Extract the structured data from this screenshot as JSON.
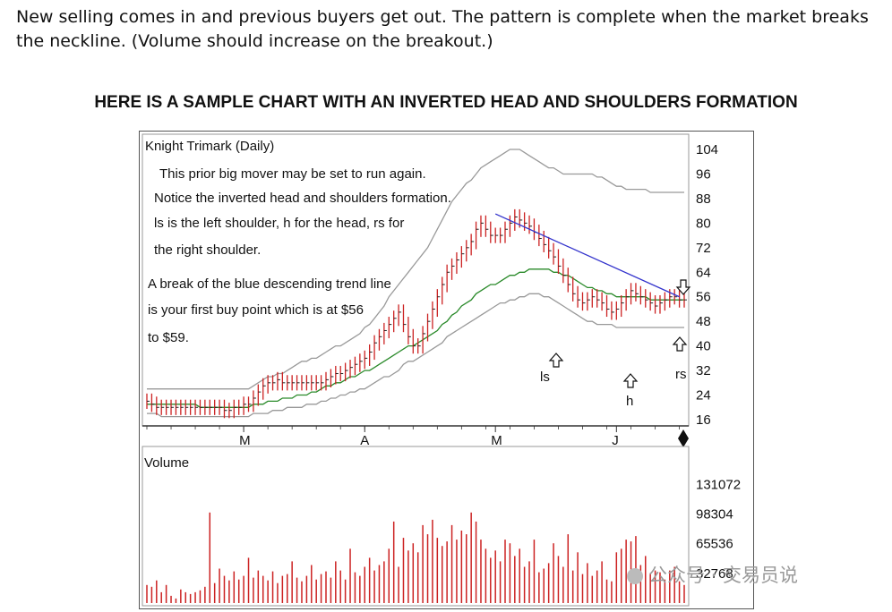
{
  "intro_text": "New selling comes in and previous buyers get out. The pattern is complete when the market breaks the neckline. (Volume should increase on the breakout.)",
  "heading": "HERE IS A SAMPLE CHART WITH AN INVERTED HEAD AND SHOULDERS FORMATION",
  "watermark": "公众号 · 交易员说",
  "chart_data": [
    {
      "type": "bar",
      "title": "Knight Trimark (Daily)",
      "annotations": [
        "This prior big mover may be set to run again.",
        "Notice the inverted head and shoulders formation.",
        "ls is the left shoulder, h for the head, rs for",
        "the right shoulder.",
        "A break of the blue descending trend line",
        "is your first buy point which is at $56",
        "to $59."
      ],
      "pattern_labels": [
        "ls",
        "h",
        "rs"
      ],
      "x_ticks": [
        "M",
        "A",
        "M",
        "J"
      ],
      "y_ticks": [
        104,
        96,
        88,
        80,
        72,
        64,
        56,
        48,
        40,
        32,
        24,
        16
      ],
      "ylim": [
        16,
        104
      ],
      "colors": {
        "price": "#cc2222",
        "moving_average": "#2a8a2a",
        "bands": "#999999",
        "trendline": "#3333cc"
      },
      "trendline": {
        "from": [
          72,
          83
        ],
        "to": [
          110,
          56
        ]
      },
      "x_count": 112,
      "closes": [
        22,
        21,
        20,
        20,
        20,
        20,
        20,
        20,
        20,
        20,
        20,
        20,
        20,
        20,
        20,
        20,
        19,
        19,
        20,
        20,
        21,
        21,
        23,
        25,
        27,
        28,
        28,
        29,
        28,
        28,
        28,
        28,
        28,
        28,
        28,
        28,
        28,
        29,
        30,
        31,
        31,
        32,
        33,
        34,
        35,
        36,
        38,
        41,
        43,
        45,
        47,
        49,
        51,
        47,
        43,
        40,
        40,
        44,
        48,
        52,
        56,
        60,
        64,
        66,
        68,
        70,
        72,
        74,
        78,
        80,
        78,
        76,
        76,
        76,
        78,
        80,
        82,
        81,
        80,
        79,
        77,
        75,
        73,
        71,
        69,
        66,
        63,
        60,
        57,
        55,
        54,
        55,
        56,
        55,
        54,
        52,
        51,
        52,
        54,
        56,
        58,
        57,
        56,
        55,
        54,
        53,
        54,
        55,
        56,
        56,
        55,
        55
      ],
      "moving_average": [
        21,
        21,
        21,
        21,
        21,
        21,
        21,
        21,
        21,
        21,
        21,
        20,
        20,
        20,
        20,
        20,
        20,
        20,
        20,
        20,
        20,
        20,
        21,
        21,
        21,
        22,
        22,
        22,
        23,
        23,
        23,
        24,
        24,
        24,
        25,
        25,
        26,
        27,
        27,
        28,
        28,
        29,
        30,
        30,
        31,
        32,
        32,
        33,
        34,
        35,
        36,
        37,
        38,
        39,
        40,
        40,
        41,
        42,
        43,
        44,
        45,
        47,
        48,
        50,
        51,
        53,
        54,
        55,
        57,
        58,
        59,
        60,
        60,
        61,
        62,
        63,
        63,
        64,
        64,
        65,
        65,
        65,
        65,
        65,
        64,
        64,
        63,
        63,
        62,
        61,
        60,
        59,
        59,
        58,
        58,
        57,
        57,
        56,
        56,
        56,
        56,
        56,
        56,
        56,
        55,
        55,
        55,
        55,
        55,
        55,
        55,
        55
      ],
      "upper_band": [
        26,
        26,
        26,
        26,
        26,
        26,
        26,
        26,
        26,
        26,
        26,
        26,
        26,
        26,
        26,
        26,
        26,
        26,
        26,
        26,
        26,
        26,
        27,
        28,
        29,
        30,
        30,
        31,
        31,
        32,
        33,
        34,
        35,
        35,
        36,
        36,
        37,
        38,
        39,
        40,
        40,
        41,
        42,
        43,
        44,
        46,
        47,
        49,
        51,
        53,
        56,
        58,
        60,
        62,
        64,
        66,
        68,
        70,
        72,
        75,
        78,
        81,
        84,
        87,
        89,
        91,
        93,
        94,
        96,
        98,
        99,
        100,
        101,
        102,
        103,
        104,
        104,
        104,
        103,
        102,
        101,
        100,
        99,
        98,
        98,
        97,
        96,
        96,
        96,
        96,
        96,
        96,
        96,
        95,
        95,
        94,
        93,
        92,
        92,
        91,
        91,
        91,
        91,
        91,
        90,
        90,
        90,
        90,
        90,
        90,
        90,
        90
      ],
      "lower_band": [
        18,
        18,
        18,
        17,
        17,
        17,
        17,
        17,
        17,
        17,
        17,
        17,
        17,
        17,
        17,
        17,
        17,
        17,
        17,
        17,
        17,
        17,
        18,
        18,
        18,
        18,
        19,
        19,
        19,
        20,
        20,
        20,
        20,
        21,
        21,
        21,
        22,
        22,
        23,
        23,
        24,
        24,
        25,
        25,
        26,
        26,
        27,
        28,
        29,
        30,
        30,
        31,
        32,
        34,
        35,
        35,
        36,
        37,
        38,
        39,
        40,
        41,
        43,
        44,
        45,
        46,
        47,
        48,
        49,
        50,
        51,
        52,
        53,
        54,
        54,
        55,
        55,
        56,
        56,
        57,
        57,
        57,
        56,
        56,
        55,
        54,
        53,
        52,
        51,
        50,
        49,
        48,
        48,
        47,
        47,
        47,
        47,
        46,
        46,
        46,
        46,
        46,
        46,
        46,
        46,
        46,
        46,
        46,
        46,
        46,
        46,
        46
      ]
    },
    {
      "type": "bar",
      "title": "Volume",
      "y_ticks": [
        131072,
        98304,
        65536,
        32768
      ],
      "ylim": [
        0,
        160000
      ],
      "color": "#cc2222",
      "values": [
        20000,
        18000,
        25000,
        12000,
        20000,
        8000,
        5000,
        15000,
        12000,
        10000,
        12000,
        14000,
        18000,
        100000,
        22000,
        38000,
        30000,
        25000,
        35000,
        26000,
        30000,
        50000,
        28000,
        36000,
        30000,
        25000,
        35000,
        22000,
        30000,
        32000,
        46000,
        28000,
        24000,
        30000,
        42000,
        26000,
        32000,
        35000,
        28000,
        46000,
        36000,
        26000,
        60000,
        34000,
        30000,
        40000,
        50000,
        36000,
        42000,
        46000,
        60000,
        90000,
        40000,
        72000,
        58000,
        66000,
        56000,
        86000,
        76000,
        92000,
        72000,
        63000,
        68000,
        86000,
        70000,
        80000,
        76000,
        100000,
        90000,
        70000,
        60000,
        50000,
        58000,
        46000,
        70000,
        66000,
        52000,
        60000,
        40000,
        46000,
        70000,
        34000,
        38000,
        44000,
        66000,
        52000,
        40000,
        76000,
        36000,
        56000,
        32000,
        44000,
        30000,
        36000,
        46000,
        26000,
        24000,
        56000,
        60000,
        70000,
        68000,
        74000,
        42000,
        52000,
        32000,
        36000,
        34000,
        26000,
        36000,
        40000,
        24000,
        20000
      ]
    }
  ]
}
